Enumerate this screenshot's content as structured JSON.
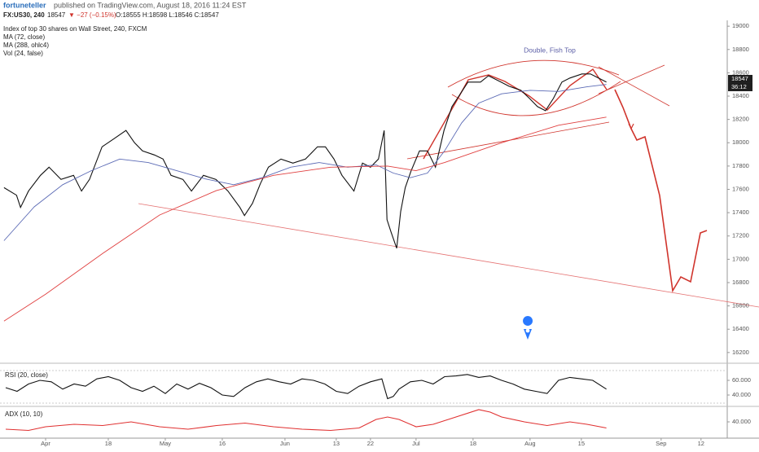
{
  "header": {
    "author": "fortuneteller",
    "published": "published on TradingView.com, August 18, 2016 11:24 EST",
    "symbol": "FX:US30, 240",
    "price": 18547,
    "change": "▼ −27 (−0.15%)",
    "ohlc": "O:18555 H:18598 L:18546 C:18547"
  },
  "chart_data": [
    {
      "type": "line",
      "title": "Index of top 30 shares on Wall Street, 240, FXCM",
      "annotation": "Double, Fish Top",
      "volume_label": "Vol (24, false)",
      "last_price": 18547,
      "countdown": "36:12",
      "xlim": [
        -8,
        119.6
      ],
      "xticks": [
        {
          "value": 0,
          "label": "Apr"
        },
        {
          "value": 11,
          "label": "18"
        },
        {
          "value": 21,
          "label": "May"
        },
        {
          "value": 31,
          "label": "16"
        },
        {
          "value": 42,
          "label": "Jun"
        },
        {
          "value": 51,
          "label": "13"
        },
        {
          "value": 57,
          "label": "22"
        },
        {
          "value": 65,
          "label": "Jul"
        },
        {
          "value": 75,
          "label": "18"
        },
        {
          "value": 85,
          "label": "Aug"
        },
        {
          "value": 94,
          "label": "15"
        },
        {
          "value": 108,
          "label": "Sep"
        },
        {
          "value": 115,
          "label": "12"
        }
      ],
      "ylim": [
        16150,
        19050
      ],
      "yticks": [
        16200,
        16400,
        16600,
        16800,
        17000,
        17200,
        17400,
        17600,
        17800,
        18000,
        18200,
        18400,
        18600,
        18800,
        19000
      ],
      "series": [
        {
          "color": "#111111",
          "x": [
            -7.3,
            -5.1,
            -4.4,
            -3,
            -0.9,
            0.6,
            2.7,
            4.9,
            6.3,
            7.7,
            9.9,
            12,
            14.1,
            15.6,
            17,
            19.1,
            20.6,
            22,
            24.1,
            25.6,
            27.7,
            29.9,
            32,
            34.1,
            34.9,
            36.3,
            37.7,
            39.1,
            41.3,
            43.4,
            45.6,
            47.7,
            49.1,
            50.6,
            52,
            54.1,
            55.6,
            57,
            58.4,
            59.4,
            59.9,
            60.6,
            61.6,
            62.3,
            63.1,
            64.1,
            65.6,
            67,
            68.4,
            69.9,
            71.3,
            72.7,
            74.1,
            76.3,
            77.7,
            79.9,
            81.3,
            83.4,
            84.9,
            86.3,
            87.7,
            89.1,
            90.6,
            92,
            94.1,
            95.6,
            97,
            98.4
          ],
          "values": [
            17615,
            17550,
            17445,
            17585,
            17720,
            17790,
            17685,
            17720,
            17585,
            17685,
            17965,
            18035,
            18105,
            18000,
            17930,
            17895,
            17860,
            17720,
            17685,
            17585,
            17720,
            17685,
            17585,
            17445,
            17375,
            17480,
            17650,
            17790,
            17860,
            17825,
            17860,
            17965,
            17965,
            17860,
            17720,
            17585,
            17825,
            17790,
            17860,
            18105,
            17340,
            17235,
            17095,
            17410,
            17615,
            17755,
            17930,
            17930,
            17790,
            18105,
            18310,
            18415,
            18520,
            18520,
            18575,
            18520,
            18485,
            18450,
            18380,
            18310,
            18275,
            18380,
            18520,
            18555,
            18590,
            18590,
            18555,
            18520
          ]
        },
        {
          "name": "MA (72, close)",
          "color": "#5b6ab5",
          "x": [
            -7.3,
            -2,
            3,
            8,
            13,
            18,
            23,
            28,
            33,
            38,
            43,
            48,
            53,
            58,
            61,
            64,
            67,
            70,
            73,
            76,
            80,
            85,
            90,
            95,
            98.4
          ],
          "values": [
            17160,
            17450,
            17640,
            17760,
            17860,
            17830,
            17760,
            17690,
            17640,
            17700,
            17790,
            17830,
            17790,
            17810,
            17740,
            17700,
            17740,
            17930,
            18170,
            18340,
            18420,
            18450,
            18440,
            18480,
            18500
          ]
        },
        {
          "name": "MA (288, ohlc4)",
          "color": "#e04040",
          "x": [
            -7.3,
            0,
            10,
            20,
            30,
            40,
            50,
            60,
            65,
            70,
            80,
            90,
            98.4
          ],
          "values": [
            16470,
            16700,
            17050,
            17380,
            17590,
            17720,
            17790,
            17800,
            17760,
            17830,
            18000,
            18150,
            18220
          ]
        }
      ]
    },
    {
      "type": "line",
      "title": "RSI (20, close)",
      "ylim": [
        26.7,
        76.7
      ],
      "yticks": [
        {
          "value": 60,
          "label": "60.000"
        },
        {
          "value": 40,
          "label": "40.000"
        }
      ],
      "series": [
        {
          "color": "#111111",
          "x": [
            -7,
            -5,
            -3,
            -1,
            1,
            3,
            5,
            7,
            9,
            11,
            13,
            15,
            17,
            19,
            21,
            23,
            25,
            27,
            29,
            31,
            33,
            35,
            37,
            39,
            41,
            43,
            45,
            47,
            49,
            51,
            53,
            55,
            57,
            59,
            60,
            61,
            62,
            64,
            66,
            68,
            70,
            72,
            74,
            76,
            78,
            80,
            82,
            84,
            86,
            88,
            90,
            92,
            94,
            96,
            98.4
          ],
          "values": [
            50,
            45,
            55,
            60,
            58,
            48,
            55,
            52,
            62,
            65,
            60,
            50,
            45,
            52,
            42,
            55,
            48,
            56,
            50,
            40,
            38,
            50,
            58,
            62,
            58,
            55,
            62,
            60,
            55,
            45,
            42,
            52,
            58,
            62,
            35,
            38,
            48,
            58,
            60,
            55,
            65,
            66,
            68,
            64,
            66,
            60,
            55,
            48,
            45,
            42,
            60,
            64,
            62,
            60,
            48
          ]
        }
      ]
    },
    {
      "type": "line",
      "title": "ADX (10, 10)",
      "ylim": [
        28,
        52
      ],
      "yticks": [
        {
          "value": 40,
          "label": "40.000"
        }
      ],
      "series": [
        {
          "color": "#e03030",
          "x": [
            -7,
            -3,
            0,
            5,
            10,
            15,
            20,
            25,
            30,
            35,
            40,
            45,
            50,
            55,
            58,
            60,
            62,
            65,
            68,
            72,
            76,
            78,
            80,
            84,
            88,
            92,
            95,
            98.4
          ],
          "values": [
            34,
            33,
            36,
            38,
            37,
            40,
            36,
            34,
            37,
            39,
            36,
            34,
            33,
            35,
            42,
            44,
            42,
            36,
            38,
            44,
            50,
            48,
            44,
            40,
            37,
            40,
            38,
            35
          ]
        }
      ]
    }
  ]
}
